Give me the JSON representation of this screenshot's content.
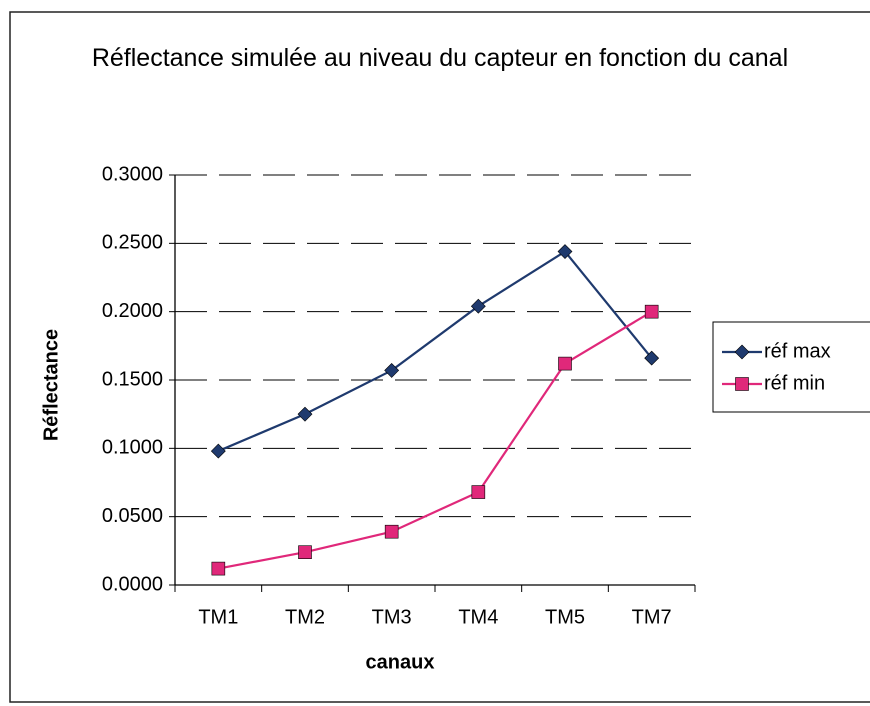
{
  "chart_data": {
    "type": "line",
    "title": "Réflectance simulée au niveau du capteur en fonction du canal",
    "x_label": "canaux",
    "y_label": "Réflectance",
    "categories": [
      "TM1",
      "TM2",
      "TM3",
      "TM4",
      "TM5",
      "TM7"
    ],
    "series": [
      {
        "name": "réf max",
        "color": "#1f3a6e",
        "marker": "diamond",
        "values": [
          0.098,
          0.125,
          0.157,
          0.204,
          0.244,
          0.166
        ]
      },
      {
        "name": "réf min",
        "color": "#e0287a",
        "marker": "square",
        "values": [
          0.012,
          0.024,
          0.039,
          0.068,
          0.162,
          0.2
        ]
      }
    ],
    "ylim": [
      0,
      0.3
    ],
    "yticks": [
      {
        "value": 0,
        "label": "0.0000"
      },
      {
        "value": 0.05,
        "label": "0.0500"
      },
      {
        "value": 0.1,
        "label": "0.1000"
      },
      {
        "value": 0.15,
        "label": "0.1500"
      },
      {
        "value": 0.2,
        "label": "0.2000"
      },
      {
        "value": 0.25,
        "label": "0.2500"
      },
      {
        "value": 0.3,
        "label": "0.3000"
      }
    ],
    "grid": true,
    "legend": "right"
  }
}
